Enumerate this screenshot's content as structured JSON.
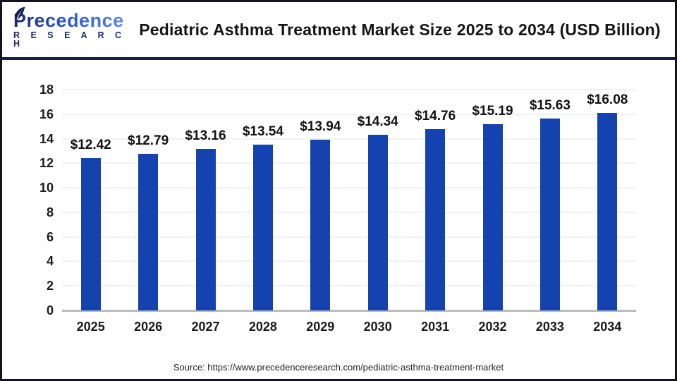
{
  "logo": {
    "brand": "Precedence",
    "sub": "R E S E A R C H"
  },
  "header": {
    "title": "Pediatric Asthma Treatment Market Size 2025 to 2034 (USD Billion)"
  },
  "footer": {
    "source": "Source: https://www.precedenceresearch.com/pediatric-asthma-treatment-market"
  },
  "colors": {
    "bar": "#1443b0",
    "divider": "#171e4e",
    "grid": "#f1f1f1",
    "baseline": "#bdbdbd",
    "logo_navy": "#1c2766"
  },
  "chart_data": {
    "type": "bar",
    "title": "Pediatric Asthma Treatment Market Size 2025 to 2034 (USD Billion)",
    "categories": [
      "2025",
      "2026",
      "2027",
      "2028",
      "2029",
      "2030",
      "2031",
      "2032",
      "2033",
      "2034"
    ],
    "values": [
      12.42,
      12.79,
      13.16,
      13.54,
      13.94,
      14.34,
      14.76,
      15.19,
      15.63,
      16.08
    ],
    "value_labels": [
      "$12.42",
      "$12.79",
      "$13.16",
      "$13.54",
      "$13.94",
      "$14.34",
      "$14.76",
      "$15.19",
      "$15.63",
      "$16.08"
    ],
    "unit": "USD Billion",
    "xlabel": "",
    "ylabel": "",
    "ylim": [
      0,
      18
    ],
    "yticks": [
      0,
      2,
      4,
      6,
      8,
      10,
      12,
      14,
      16,
      18
    ],
    "grid": true,
    "legend": false
  }
}
